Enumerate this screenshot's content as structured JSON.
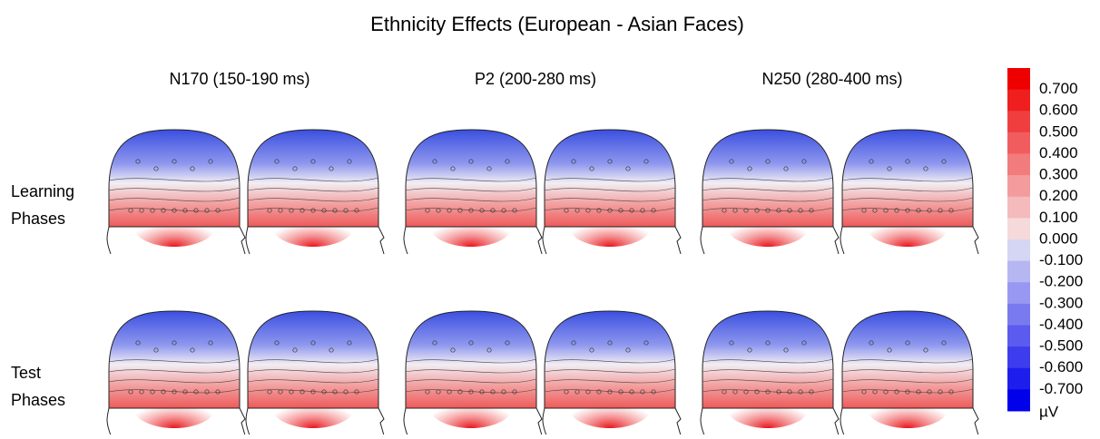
{
  "title": "Ethnicity Effects (European - Asian Faces)",
  "columns": [
    "N170 (150-190 ms)",
    "P2 (200-280 ms)",
    "N250 (280-400 ms)"
  ],
  "rows": [
    [
      "Learning",
      "Phases"
    ],
    [
      "Test",
      "Phases"
    ]
  ],
  "colorbar": {
    "ticks": [
      "0.700",
      "0.600",
      "0.500",
      "0.400",
      "0.300",
      "0.200",
      "0.100",
      "0.000",
      "-0.100",
      "-0.200",
      "-0.300",
      "-0.400",
      "-0.500",
      "-0.600",
      "-0.700"
    ],
    "unit": "µV"
  }
}
